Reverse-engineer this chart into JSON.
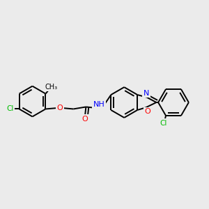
{
  "bg_color": "#ebebeb",
  "bond_color": "#000000",
  "colors": {
    "Cl": "#00bb00",
    "O": "#ff0000",
    "N": "#0000ff",
    "C": "#000000"
  },
  "lw": 1.4,
  "r_hex": 0.073,
  "r_small": 0.055
}
